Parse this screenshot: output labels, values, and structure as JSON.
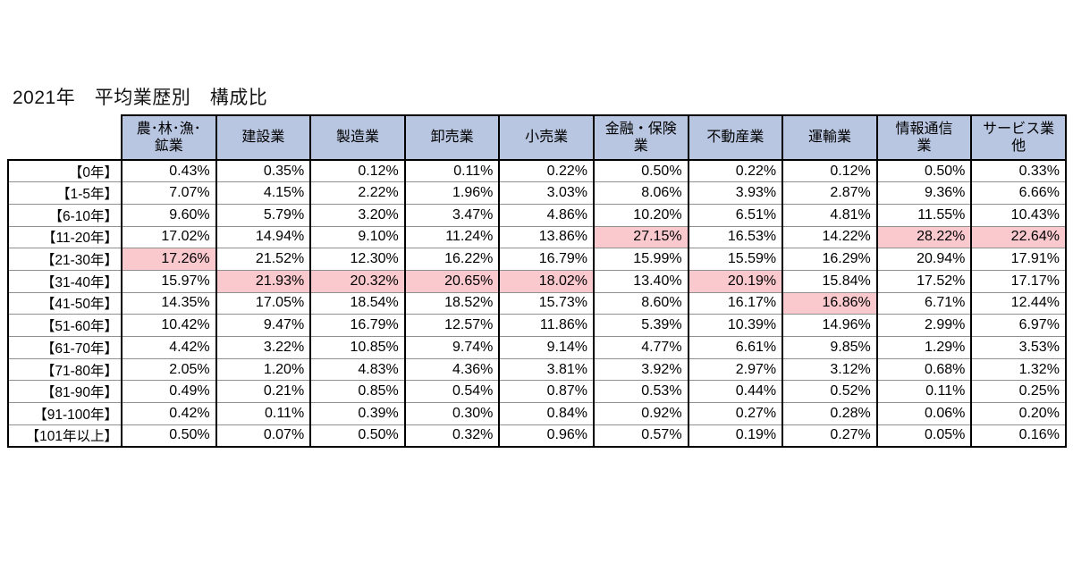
{
  "title": "2021年　平均業歴別　構成比",
  "colors": {
    "header_bg": "#B9C6E1",
    "highlight_bg": "#F9C9CE",
    "thick_border": "#000000",
    "grid_line": "#8f8f8f",
    "background": "#ffffff"
  },
  "chart_data": {
    "type": "table",
    "title": "2021年　平均業歴別　構成比",
    "unit": "%",
    "columns": [
      "農･林･漁･\n鉱業",
      "建設業",
      "製造業",
      "卸売業",
      "小売業",
      "金融・保険\n業",
      "不動産業",
      "運輸業",
      "情報通信\n業",
      "サービス業\n他"
    ],
    "row_labels": [
      "【0年】",
      "【1-5年】",
      "【6-10年】",
      "【11-20年】",
      "【21-30年】",
      "【31-40年】",
      "【41-50年】",
      "【51-60年】",
      "【61-70年】",
      "【71-80年】",
      "【81-90年】",
      "【91-100年】",
      "【101年以上】"
    ],
    "values_pct": [
      [
        0.43,
        0.35,
        0.12,
        0.11,
        0.22,
        0.5,
        0.22,
        0.12,
        0.5,
        0.33
      ],
      [
        7.07,
        4.15,
        2.22,
        1.96,
        3.03,
        8.06,
        3.93,
        2.87,
        9.36,
        6.66
      ],
      [
        9.6,
        5.79,
        3.2,
        3.47,
        4.86,
        10.2,
        6.51,
        4.81,
        11.55,
        10.43
      ],
      [
        17.02,
        14.94,
        9.1,
        11.24,
        13.86,
        27.15,
        16.53,
        14.22,
        28.22,
        22.64
      ],
      [
        17.26,
        21.52,
        12.3,
        16.22,
        16.79,
        15.99,
        15.59,
        16.29,
        20.94,
        17.91
      ],
      [
        15.97,
        21.93,
        20.32,
        20.65,
        18.02,
        13.4,
        20.19,
        15.84,
        17.52,
        17.17
      ],
      [
        14.35,
        17.05,
        18.54,
        18.52,
        15.73,
        8.6,
        16.17,
        16.86,
        6.71,
        12.44
      ],
      [
        10.42,
        9.47,
        16.79,
        12.57,
        11.86,
        5.39,
        10.39,
        14.96,
        2.99,
        6.97
      ],
      [
        4.42,
        3.22,
        10.85,
        9.74,
        9.14,
        4.77,
        6.61,
        9.85,
        1.29,
        3.53
      ],
      [
        2.05,
        1.2,
        4.83,
        4.36,
        3.81,
        3.92,
        2.97,
        3.12,
        0.68,
        1.32
      ],
      [
        0.49,
        0.21,
        0.85,
        0.54,
        0.87,
        0.53,
        0.44,
        0.52,
        0.11,
        0.25
      ],
      [
        0.42,
        0.11,
        0.39,
        0.3,
        0.84,
        0.92,
        0.27,
        0.28,
        0.06,
        0.2
      ],
      [
        0.5,
        0.07,
        0.5,
        0.32,
        0.96,
        0.57,
        0.19,
        0.27,
        0.05,
        0.16
      ]
    ],
    "highlighted_cells": [
      [
        3,
        5
      ],
      [
        3,
        8
      ],
      [
        3,
        9
      ],
      [
        4,
        0
      ],
      [
        5,
        1
      ],
      [
        5,
        2
      ],
      [
        5,
        3
      ],
      [
        5,
        4
      ],
      [
        5,
        6
      ],
      [
        6,
        7
      ]
    ]
  }
}
